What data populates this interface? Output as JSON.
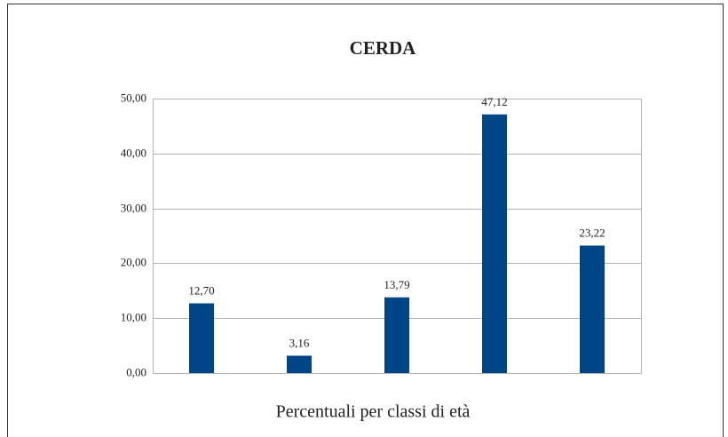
{
  "chart_data": {
    "type": "bar",
    "title": "CERDA",
    "x_label": "Percentuali per classi di età",
    "categories": [
      null,
      null,
      null,
      null,
      null
    ],
    "values": [
      12.7,
      3.16,
      13.79,
      47.12,
      23.22
    ],
    "value_labels": [
      "12,70",
      "3,16",
      "13,79",
      "47,12",
      "23,22"
    ],
    "color": "#004586",
    "ylim": [
      0,
      50
    ],
    "yticks": [
      {
        "value": 0,
        "label": "0,00"
      },
      {
        "value": 10,
        "label": "10,00"
      },
      {
        "value": 20,
        "label": "20,00"
      },
      {
        "value": 30,
        "label": "30,00"
      },
      {
        "value": 40,
        "label": "40,00"
      },
      {
        "value": 50,
        "label": "50,00"
      }
    ],
    "grid": true
  }
}
